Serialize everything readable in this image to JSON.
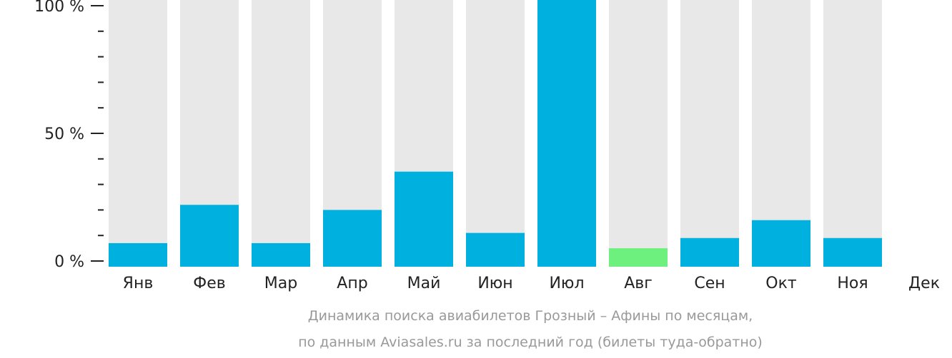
{
  "chart_data": {
    "type": "bar",
    "categories": [
      "Янв",
      "Фев",
      "Мар",
      "Апр",
      "Май",
      "Июн",
      "Июл",
      "Авг",
      "Сен",
      "Окт",
      "Ноя",
      "Дек"
    ],
    "values": [
      7,
      22,
      7,
      20,
      35,
      11,
      100,
      5,
      9,
      16,
      9,
      0
    ],
    "highlight_index": 7,
    "ylim": [
      0,
      100
    ],
    "ytick_labels": [
      "0 %",
      "50 %",
      "100 %"
    ],
    "ytick_values": [
      0,
      50,
      100
    ],
    "minor_tick_step": 10,
    "colors": {
      "bar": "#00b0de",
      "highlight": "#6ef07e",
      "track": "#e8e8e8",
      "axis": "#222222",
      "caption": "#999999"
    },
    "caption_line_1": "Динамика поиска авиабилетов Грозный – Афины по месяцам,",
    "caption_line_2": "по данным Aviasales.ru за последний год (билеты туда-обратно)"
  }
}
